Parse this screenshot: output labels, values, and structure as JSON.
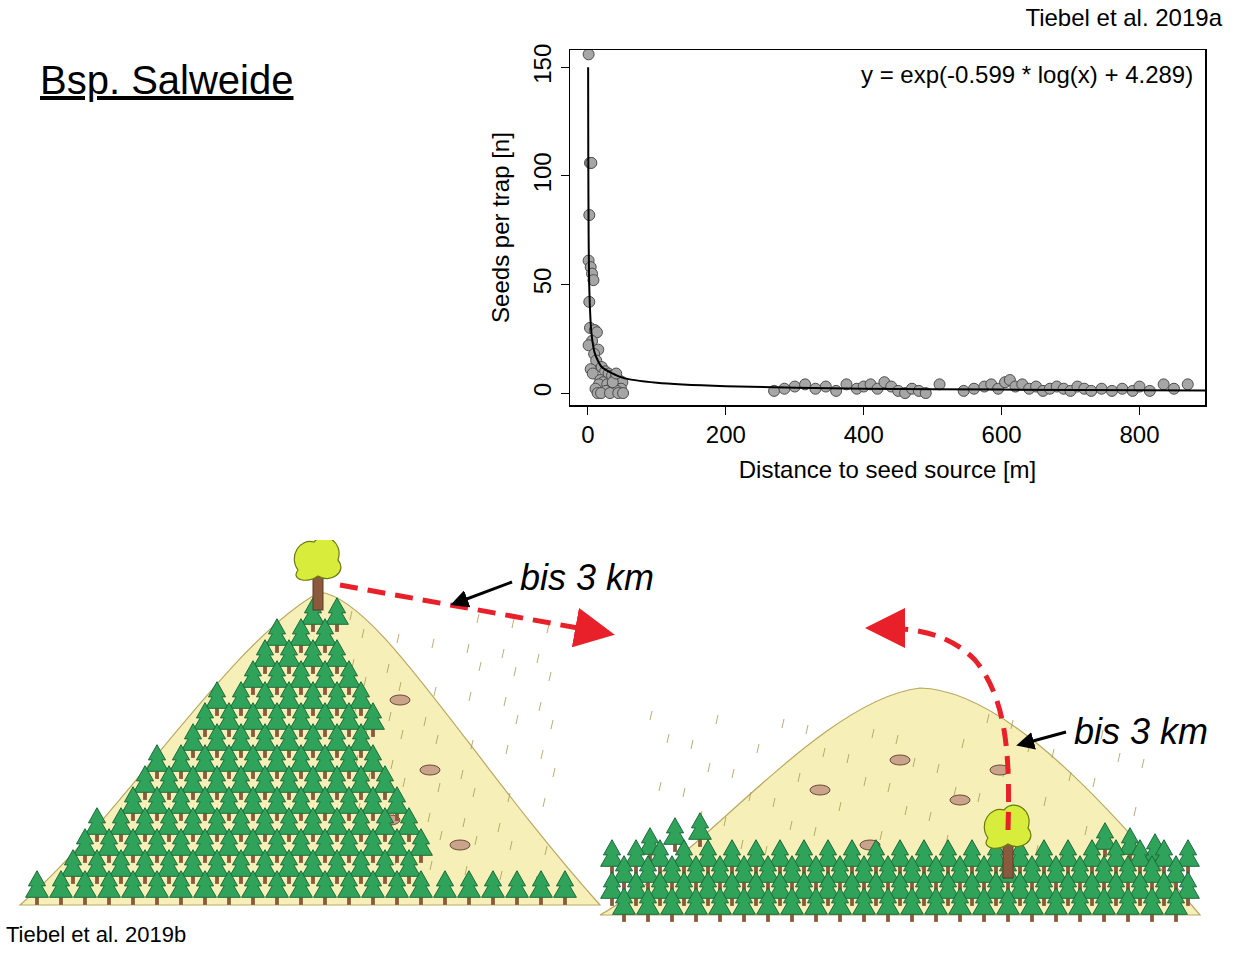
{
  "header": {
    "title": "Bsp. Salweide",
    "source_top": "Tiebel et al. 2019a",
    "source_bottom": "Tiebel et al. 2019b"
  },
  "chart_data": {
    "type": "scatter",
    "annotation": "y = exp(-0.599 * log(x) + 4.289)",
    "x_label": "Distance to seed source [m]",
    "y_label": "Seeds per trap [n]",
    "xlim": [
      -26,
      895
    ],
    "ylim": [
      -5.5,
      158
    ],
    "xticks": [
      0,
      200,
      400,
      600,
      800
    ],
    "yticks": [
      0,
      50,
      100,
      150
    ],
    "grid": false,
    "series": [
      {
        "type": "scatter",
        "marker": "circle",
        "color": "#a6a6a6",
        "x": [
          1,
          3,
          5,
          2,
          1,
          4,
          6,
          8,
          2,
          3,
          10,
          13,
          6,
          1,
          15,
          9,
          12,
          20,
          4,
          25,
          7,
          30,
          35,
          40,
          18,
          45,
          50,
          22,
          16,
          28,
          38,
          11,
          33,
          48,
          26,
          42,
          14,
          19,
          32,
          44,
          51,
          36,
          41,
          270,
          285,
          300,
          315,
          330,
          345,
          360,
          375,
          390,
          400,
          410,
          420,
          430,
          440,
          450,
          460,
          470,
          480,
          490,
          510,
          545,
          560,
          575,
          585,
          595,
          605,
          612,
          620,
          630,
          640,
          650,
          660,
          670,
          680,
          690,
          700,
          710,
          720,
          730,
          745,
          760,
          775,
          790,
          800,
          815,
          835,
          850,
          870
        ],
        "values": [
          156,
          106,
          106,
          82,
          61,
          58,
          55,
          52,
          42,
          30,
          29,
          28,
          24,
          22,
          20,
          18,
          15,
          12,
          11,
          10,
          9,
          9,
          8,
          7,
          6,
          6,
          5,
          5,
          4,
          4,
          3,
          2,
          2,
          2,
          1,
          1,
          0,
          0,
          0,
          0,
          0,
          5,
          9,
          1,
          2,
          3,
          4,
          2,
          3,
          1,
          4,
          2,
          3,
          4,
          2,
          5,
          3,
          1,
          0,
          2,
          1,
          0,
          4,
          1,
          2,
          3,
          4,
          2,
          5,
          6,
          3,
          4,
          2,
          3,
          1,
          2,
          3,
          2,
          1,
          3,
          2,
          1,
          2,
          1,
          2,
          1,
          3,
          1,
          4,
          2,
          4
        ]
      },
      {
        "type": "line",
        "color": "#000000",
        "x": [
          0.3,
          0.5,
          1,
          2,
          5,
          10,
          20,
          50,
          100,
          200,
          400,
          600,
          895
        ],
        "values": [
          150,
          110,
          73,
          48,
          28,
          18.3,
          12,
          7.1,
          4.7,
          3.1,
          2.0,
          1.6,
          1.2
        ]
      }
    ]
  },
  "illustration": {
    "labels": [
      "bis 3 km",
      "bis 3 km"
    ]
  }
}
